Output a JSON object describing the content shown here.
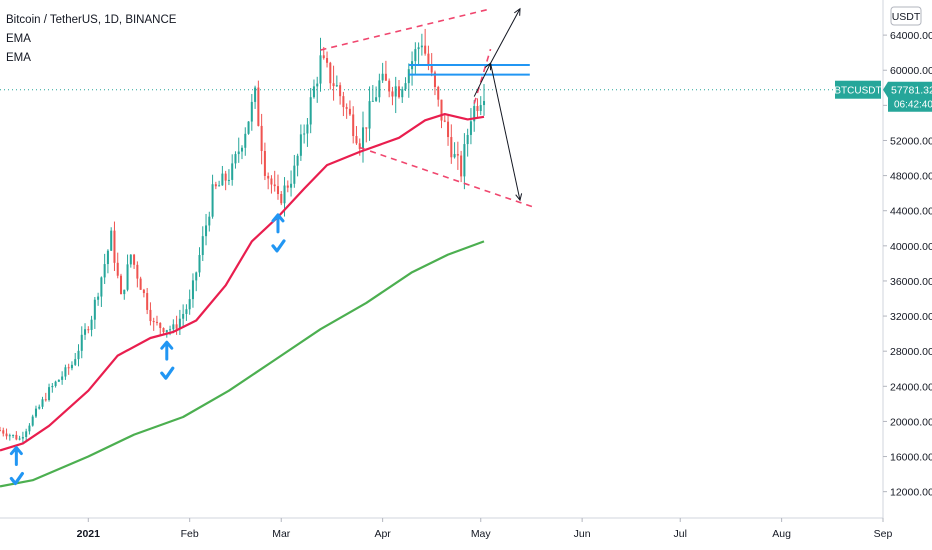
{
  "header": {
    "title": "Bitcoin / TetherUS, 1D, BINANCE",
    "indicators": [
      "EMA",
      "EMA"
    ]
  },
  "currency": "USDT",
  "price_tag": {
    "symbol": "BTCUSDT",
    "price": "57781.32",
    "countdown": "06:42:40",
    "value": 57781.32
  },
  "colors": {
    "up": "#26a69a",
    "down": "#ef5350",
    "ema_short": "#e91e4e",
    "ema_long": "#4caf50",
    "pattern_lines": "#f0466e",
    "levels": "#2196f3",
    "arrows": "#131722",
    "marks": "#2196f3",
    "price_tag": "#26a69a"
  },
  "chart_data": {
    "type": "line",
    "y_axis_labels": [
      "64000.00",
      "60000.00",
      "56000.00",
      "52000.00",
      "48000.00",
      "44000.00",
      "40000.00",
      "36000.00",
      "32000.00",
      "28000.00",
      "24000.00",
      "20000.00",
      "16000.00",
      "12000.00"
    ],
    "ylim": [
      9000,
      68000
    ],
    "x_axis_labels": [
      {
        "label": "2021",
        "date": "2021-01-01",
        "bold": true
      },
      {
        "label": "Feb",
        "date": "2021-02-01"
      },
      {
        "label": "Mar",
        "date": "2021-03-01"
      },
      {
        "label": "Apr",
        "date": "2021-04-01"
      },
      {
        "label": "May",
        "date": "2021-05-01"
      },
      {
        "label": "Jun",
        "date": "2021-06-01"
      },
      {
        "label": "Jul",
        "date": "2021-07-01"
      },
      {
        "label": "Aug",
        "date": "2021-08-01"
      },
      {
        "label": "Sep",
        "date": "2021-09-01"
      }
    ],
    "xlim": [
      "2020-12-05",
      "2021-09-01"
    ],
    "price_path": [
      [
        "2020-12-05",
        19000
      ],
      [
        "2020-12-11",
        18000
      ],
      [
        "2020-12-16",
        21000
      ],
      [
        "2020-12-20",
        23500
      ],
      [
        "2020-12-27",
        26500
      ],
      [
        "2021-01-02",
        32000
      ],
      [
        "2021-01-08",
        41000
      ],
      [
        "2021-01-11",
        34000
      ],
      [
        "2021-01-14",
        39000
      ],
      [
        "2021-01-21",
        31000
      ],
      [
        "2021-01-27",
        30500
      ],
      [
        "2021-02-01",
        33500
      ],
      [
        "2021-02-08",
        46000
      ],
      [
        "2021-02-14",
        48500
      ],
      [
        "2021-02-21",
        57000
      ],
      [
        "2021-02-24",
        49000
      ],
      [
        "2021-02-28",
        45000
      ],
      [
        "2021-03-05",
        48500
      ],
      [
        "2021-03-13",
        61000
      ],
      [
        "2021-03-18",
        58000
      ],
      [
        "2021-03-25",
        52000
      ],
      [
        "2021-03-31",
        58500
      ],
      [
        "2021-04-06",
        58000
      ],
      [
        "2021-04-13",
        63500
      ],
      [
        "2021-04-18",
        56000
      ],
      [
        "2021-04-23",
        50000
      ],
      [
        "2021-04-25",
        48500
      ],
      [
        "2021-04-28",
        55000
      ],
      [
        "2021-05-02",
        57781
      ]
    ],
    "wick_range": 0.035,
    "series": [
      {
        "kind": "ema_short",
        "points": [
          [
            "2020-12-05",
            16700
          ],
          [
            "2020-12-12",
            17500
          ],
          [
            "2020-12-20",
            19500
          ],
          [
            "2021-01-01",
            23500
          ],
          [
            "2021-01-10",
            27500
          ],
          [
            "2021-01-20",
            29500
          ],
          [
            "2021-01-27",
            30200
          ],
          [
            "2021-02-03",
            31500
          ],
          [
            "2021-02-12",
            35500
          ],
          [
            "2021-02-20",
            40500
          ],
          [
            "2021-02-28",
            43300
          ],
          [
            "2021-03-08",
            46500
          ],
          [
            "2021-03-15",
            49200
          ],
          [
            "2021-03-25",
            50700
          ],
          [
            "2021-04-06",
            52300
          ],
          [
            "2021-04-14",
            54300
          ],
          [
            "2021-04-20",
            55000
          ],
          [
            "2021-04-27",
            54400
          ],
          [
            "2021-05-02",
            54700
          ]
        ]
      },
      {
        "kind": "ema_long",
        "points": [
          [
            "2020-12-05",
            12600
          ],
          [
            "2020-12-15",
            13300
          ],
          [
            "2021-01-01",
            16000
          ],
          [
            "2021-01-15",
            18500
          ],
          [
            "2021-01-30",
            20500
          ],
          [
            "2021-02-13",
            23500
          ],
          [
            "2021-02-27",
            27000
          ],
          [
            "2021-03-13",
            30500
          ],
          [
            "2021-03-27",
            33500
          ],
          [
            "2021-04-10",
            37000
          ],
          [
            "2021-04-21",
            39000
          ],
          [
            "2021-05-02",
            40500
          ]
        ]
      }
    ],
    "horizontal_levels": [
      {
        "value": 60600,
        "from": "2021-04-09",
        "to": "2021-05-16"
      },
      {
        "value": 59500,
        "from": "2021-04-09",
        "to": "2021-05-16"
      }
    ],
    "pattern_lines": [
      {
        "from": [
          "2021-03-13",
          62300
        ],
        "to": [
          "2021-05-03",
          66900
        ]
      },
      {
        "from": [
          "2021-03-25",
          51200
        ],
        "to": [
          "2021-05-18",
          44300
        ]
      },
      {
        "from": [
          "2021-04-29",
          56200
        ],
        "to": [
          "2021-05-04",
          62400
        ]
      }
    ],
    "arrows": [
      {
        "from": [
          "2021-05-04",
          60800
        ],
        "to": [
          "2021-05-13",
          67000
        ]
      },
      {
        "from": [
          "2021-05-04",
          60800
        ],
        "to": [
          "2021-05-13",
          45200
        ]
      },
      {
        "from": [
          "2021-04-29",
          57000
        ],
        "to": [
          "2021-05-04",
          60800
        ]
      }
    ],
    "marks": [
      {
        "date": "2020-12-10",
        "value": 16000
      },
      {
        "date": "2021-01-25",
        "value": 28000
      },
      {
        "date": "2021-02-28",
        "value": 42500
      }
    ],
    "last_price_line": 57781.32
  }
}
